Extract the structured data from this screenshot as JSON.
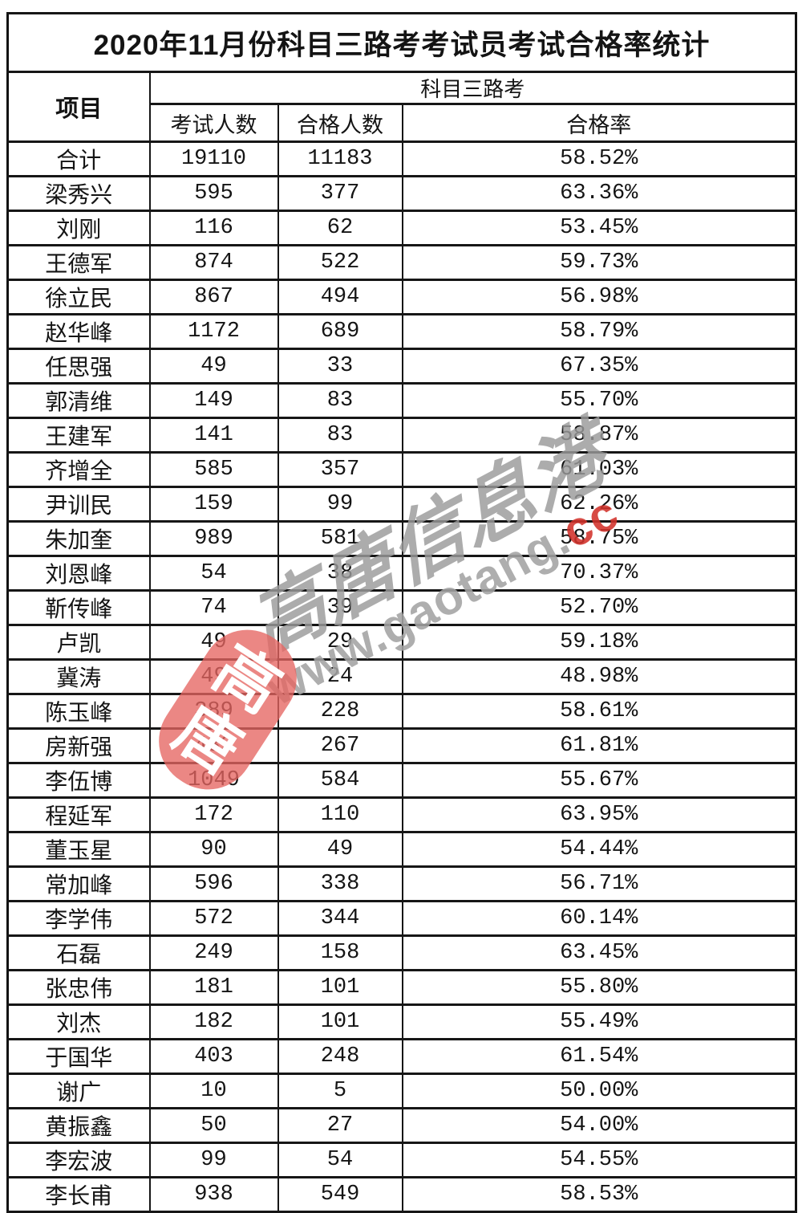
{
  "title": "2020年11月份科目三路考考试员考试合格率统计",
  "table": {
    "item_header": "项目",
    "group_header": "科目三路考",
    "columns": [
      "考试人数",
      "合格人数",
      "合格率"
    ],
    "rows": [
      {
        "name": "合计",
        "examined": "19110",
        "passed": "11183",
        "rate": "58.52%"
      },
      {
        "name": "梁秀兴",
        "examined": "595",
        "passed": "377",
        "rate": "63.36%"
      },
      {
        "name": "刘刚",
        "examined": "116",
        "passed": "62",
        "rate": "53.45%"
      },
      {
        "name": "王德军",
        "examined": "874",
        "passed": "522",
        "rate": "59.73%"
      },
      {
        "name": "徐立民",
        "examined": "867",
        "passed": "494",
        "rate": "56.98%"
      },
      {
        "name": "赵华峰",
        "examined": "1172",
        "passed": "689",
        "rate": "58.79%"
      },
      {
        "name": "任思强",
        "examined": "49",
        "passed": "33",
        "rate": "67.35%"
      },
      {
        "name": "郭清维",
        "examined": "149",
        "passed": "83",
        "rate": "55.70%"
      },
      {
        "name": "王建军",
        "examined": "141",
        "passed": "83",
        "rate": "58.87%"
      },
      {
        "name": "齐增全",
        "examined": "585",
        "passed": "357",
        "rate": "61.03%"
      },
      {
        "name": "尹训民",
        "examined": "159",
        "passed": "99",
        "rate": "62.26%"
      },
      {
        "name": "朱加奎",
        "examined": "989",
        "passed": "581",
        "rate": "58.75%"
      },
      {
        "name": "刘恩峰",
        "examined": "54",
        "passed": "38",
        "rate": "70.37%"
      },
      {
        "name": "靳传峰",
        "examined": "74",
        "passed": "39",
        "rate": "52.70%"
      },
      {
        "name": "卢凯",
        "examined": "49",
        "passed": "29",
        "rate": "59.18%"
      },
      {
        "name": "冀涛",
        "examined": "49",
        "passed": "24",
        "rate": "48.98%"
      },
      {
        "name": "陈玉峰",
        "examined": "389",
        "passed": "228",
        "rate": "58.61%"
      },
      {
        "name": "房新强",
        "examined": "432",
        "passed": "267",
        "rate": "61.81%"
      },
      {
        "name": "李伍博",
        "examined": "1049",
        "passed": "584",
        "rate": "55.67%"
      },
      {
        "name": "程延军",
        "examined": "172",
        "passed": "110",
        "rate": "63.95%"
      },
      {
        "name": "董玉星",
        "examined": "90",
        "passed": "49",
        "rate": "54.44%"
      },
      {
        "name": "常加峰",
        "examined": "596",
        "passed": "338",
        "rate": "56.71%"
      },
      {
        "name": "李学伟",
        "examined": "572",
        "passed": "344",
        "rate": "60.14%"
      },
      {
        "name": "石磊",
        "examined": "249",
        "passed": "158",
        "rate": "63.45%"
      },
      {
        "name": "张忠伟",
        "examined": "181",
        "passed": "101",
        "rate": "55.80%"
      },
      {
        "name": "刘杰",
        "examined": "182",
        "passed": "101",
        "rate": "55.49%"
      },
      {
        "name": "于国华",
        "examined": "403",
        "passed": "248",
        "rate": "61.54%"
      },
      {
        "name": "谢广",
        "examined": "10",
        "passed": "5",
        "rate": "50.00%"
      },
      {
        "name": "黄振鑫",
        "examined": "50",
        "passed": "27",
        "rate": "54.00%"
      },
      {
        "name": "李宏波",
        "examined": "99",
        "passed": "54",
        "rate": "54.55%"
      },
      {
        "name": "李长甫",
        "examined": "938",
        "passed": "549",
        "rate": "58.53%"
      }
    ]
  },
  "watermark": {
    "script_text": "高唐信息港",
    "url_gray": "www.gaotang.",
    "url_red": "cc",
    "stamp_char_top": "高",
    "stamp_char_bottom": "唐",
    "colors": {
      "stamp_red": "#e5655f",
      "url_red": "#d2322b",
      "watermark_gray": "#9b9b9b"
    }
  }
}
